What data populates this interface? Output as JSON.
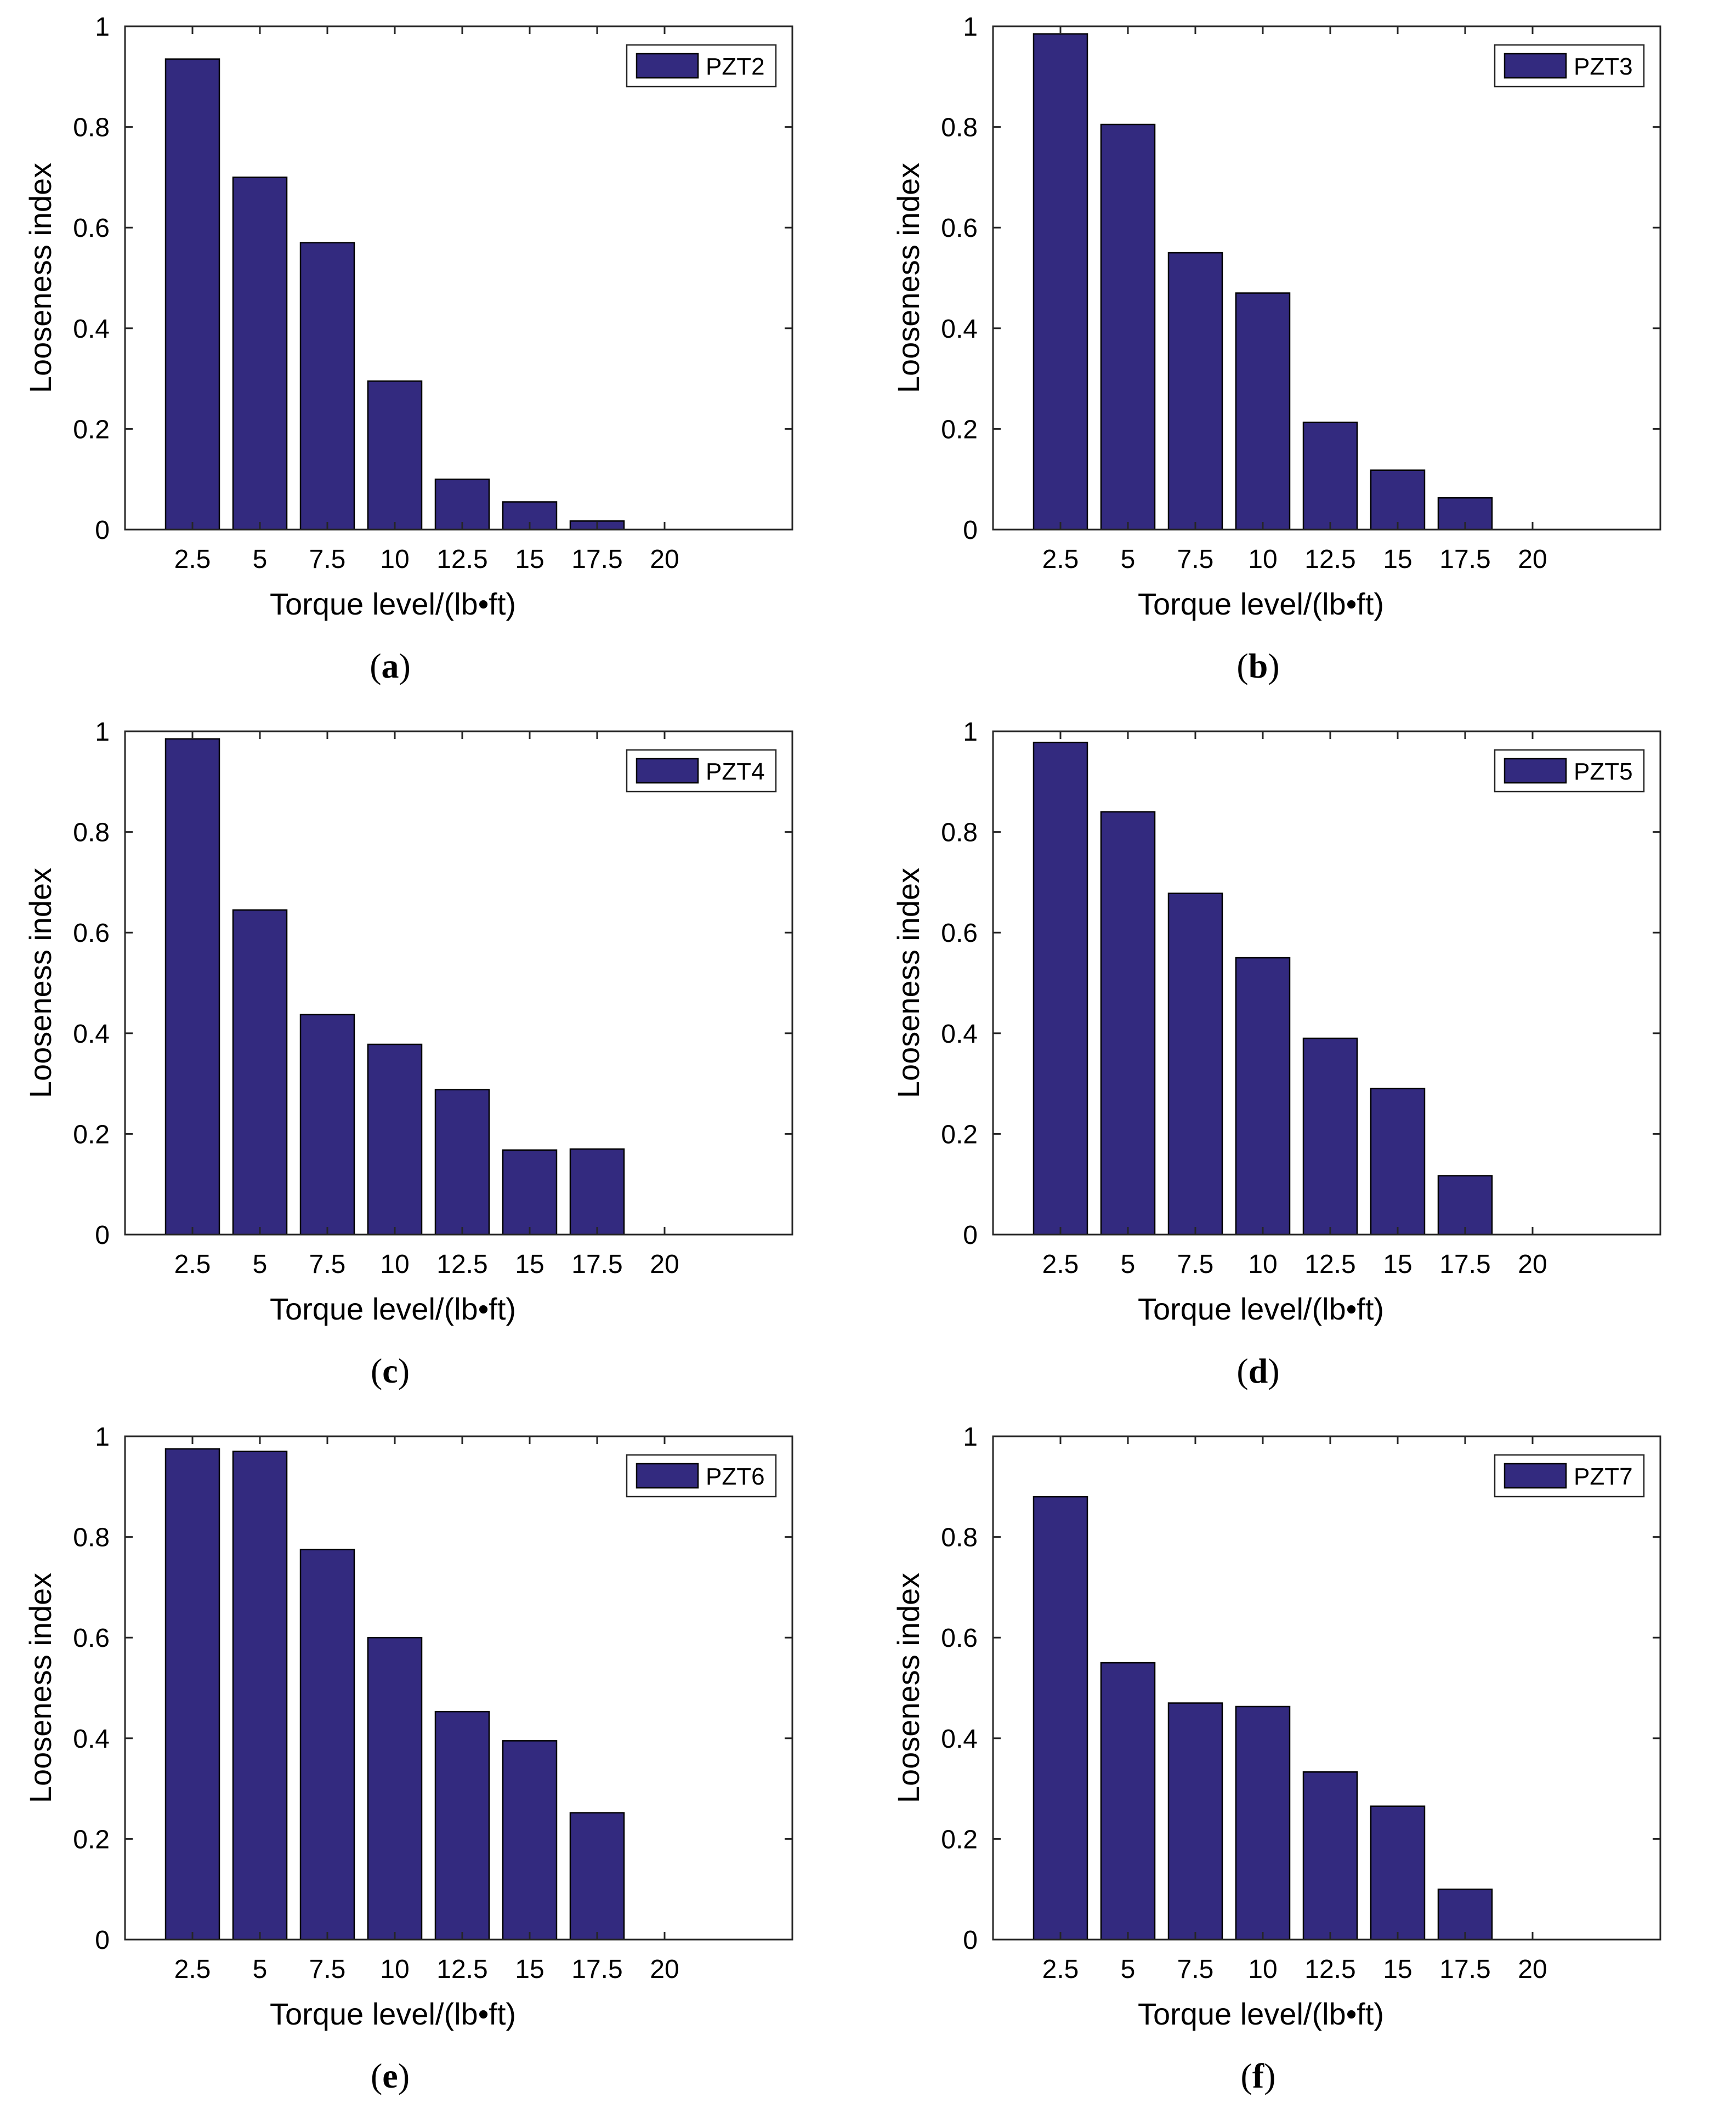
{
  "figure": {
    "ylabel": "Looseness index",
    "xlabel": "Torque level/(lb•ft)",
    "bar_color": "#332a7f"
  },
  "chart_data": [
    {
      "type": "bar",
      "caption_letter": "a",
      "legend": "PZT2",
      "categories": [
        "2.5",
        "5",
        "7.5",
        "10",
        "12.5",
        "15",
        "17.5",
        "20"
      ],
      "values": [
        0.935,
        0.7,
        0.57,
        0.295,
        0.1,
        0.055,
        0.017,
        0.0
      ],
      "xlabel": "Torque level/(lb•ft)",
      "ylabel": "Looseness index",
      "yticks": [
        "0",
        "0.2",
        "0.4",
        "0.6",
        "0.8",
        "1"
      ],
      "ylim": [
        0,
        1
      ]
    },
    {
      "type": "bar",
      "caption_letter": "b",
      "legend": "PZT3",
      "categories": [
        "2.5",
        "5",
        "7.5",
        "10",
        "12.5",
        "15",
        "17.5",
        "20"
      ],
      "values": [
        0.985,
        0.805,
        0.55,
        0.47,
        0.213,
        0.118,
        0.063,
        0.0
      ],
      "xlabel": "Torque level/(lb•ft)",
      "ylabel": "Looseness index",
      "yticks": [
        "0",
        "0.2",
        "0.4",
        "0.6",
        "0.8",
        "1"
      ],
      "ylim": [
        0,
        1
      ]
    },
    {
      "type": "bar",
      "caption_letter": "c",
      "legend": "PZT4",
      "categories": [
        "2.5",
        "5",
        "7.5",
        "10",
        "12.5",
        "15",
        "17.5",
        "20"
      ],
      "values": [
        0.985,
        0.645,
        0.437,
        0.378,
        0.288,
        0.168,
        0.17,
        0.0
      ],
      "xlabel": "Torque level/(lb•ft)",
      "ylabel": "Looseness index",
      "yticks": [
        "0",
        "0.2",
        "0.4",
        "0.6",
        "0.8",
        "1"
      ],
      "ylim": [
        0,
        1
      ]
    },
    {
      "type": "bar",
      "caption_letter": "d",
      "legend": "PZT5",
      "categories": [
        "2.5",
        "5",
        "7.5",
        "10",
        "12.5",
        "15",
        "17.5",
        "20"
      ],
      "values": [
        0.978,
        0.84,
        0.678,
        0.55,
        0.39,
        0.29,
        0.117,
        0.0
      ],
      "xlabel": "Torque level/(lb•ft)",
      "ylabel": "Looseness index",
      "yticks": [
        "0",
        "0.2",
        "0.4",
        "0.6",
        "0.8",
        "1"
      ],
      "ylim": [
        0,
        1
      ]
    },
    {
      "type": "bar",
      "caption_letter": "e",
      "legend": "PZT6",
      "categories": [
        "2.5",
        "5",
        "7.5",
        "10",
        "12.5",
        "15",
        "17.5",
        "20"
      ],
      "values": [
        0.975,
        0.97,
        0.775,
        0.6,
        0.453,
        0.395,
        0.252,
        0.0
      ],
      "xlabel": "Torque level/(lb•ft)",
      "ylabel": "Looseness index",
      "yticks": [
        "0",
        "0.2",
        "0.4",
        "0.6",
        "0.8",
        "1"
      ],
      "ylim": [
        0,
        1
      ]
    },
    {
      "type": "bar",
      "caption_letter": "f",
      "legend": "PZT7",
      "categories": [
        "2.5",
        "5",
        "7.5",
        "10",
        "12.5",
        "15",
        "17.5",
        "20"
      ],
      "values": [
        0.88,
        0.55,
        0.47,
        0.463,
        0.333,
        0.265,
        0.1,
        0.0
      ],
      "xlabel": "Torque level/(lb•ft)",
      "ylabel": "Looseness index",
      "yticks": [
        "0",
        "0.2",
        "0.4",
        "0.6",
        "0.8",
        "1"
      ],
      "ylim": [
        0,
        1
      ]
    }
  ]
}
